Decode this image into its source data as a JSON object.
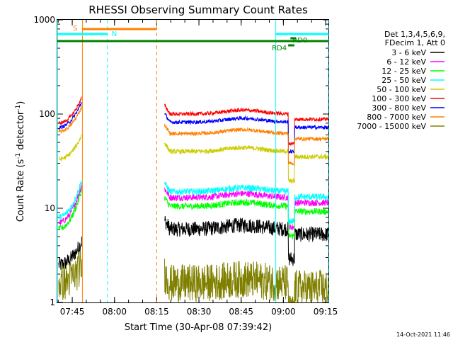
{
  "chart_data": {
    "type": "line",
    "title": "RHESSI Observing Summary Count Rates",
    "xlabel": "Start Time (30-Apr-08 07:39:42)",
    "ylabel_main": "Count Rate (s",
    "ylabel_sup1": "-1",
    "ylabel_mid": " detector",
    "ylabel_sup2": "-1",
    "ylabel_end": ")",
    "yscale": "log",
    "ylim": [
      1,
      1000
    ],
    "xlim_minutes": [
      0,
      96.3
    ],
    "x_ticks": [
      {
        "label": "07:45",
        "minute": 5.3
      },
      {
        "label": "08:00",
        "minute": 20.3
      },
      {
        "label": "08:15",
        "minute": 35.3
      },
      {
        "label": "08:30",
        "minute": 50.3
      },
      {
        "label": "08:45",
        "minute": 65.3
      },
      {
        "label": "09:00",
        "minute": 80.3
      },
      {
        "label": "09:15",
        "minute": 95.3
      }
    ],
    "y_ticks": [
      {
        "label": "1",
        "value": 1
      },
      {
        "label": "10",
        "value": 10
      },
      {
        "label": "100",
        "value": 100
      },
      {
        "label": "1000",
        "value": 1000
      }
    ],
    "legend_header": [
      "Det 1,3,4,5,6,9,",
      "FDecim 1, Att 0"
    ],
    "data_gaps_minutes": [
      [
        8.9,
        38.1
      ],
      [
        77.6,
        77.8
      ]
    ],
    "series": [
      {
        "name": "3 - 6 keV",
        "color": "#000000",
        "pre_start": 2.5,
        "pre_end": 4.5,
        "base": 6.0,
        "noise": 0.08
      },
      {
        "name": "6 - 12 keV",
        "color": "#ff00ff",
        "pre_start": 7.0,
        "pre_end": 18.0,
        "base": 13.0,
        "noise": 0.035
      },
      {
        "name": "12 - 25 keV",
        "color": "#00ff00",
        "pre_start": 6.0,
        "pre_end": 16.0,
        "base": 10.5,
        "noise": 0.035
      },
      {
        "name": "25 - 50 keV",
        "color": "#00ffff",
        "pre_start": 8.0,
        "pre_end": 20.0,
        "base": 15.0,
        "noise": 0.035
      },
      {
        "name": "50 - 100 keV",
        "color": "#cccc00",
        "pre_start": 33.0,
        "pre_end": 60.0,
        "base": 40.0,
        "noise": 0.025
      },
      {
        "name": "100 - 300 keV",
        "color": "#ff0000",
        "pre_start": 80.0,
        "pre_end": 150.0,
        "base": 100.0,
        "noise": 0.02
      },
      {
        "name": "300 - 800 keV",
        "color": "#0000ff",
        "pre_start": 72.0,
        "pre_end": 135.0,
        "base": 82.0,
        "noise": 0.02
      },
      {
        "name": "800 - 7000 keV",
        "color": "#ff8000",
        "pre_start": 65.0,
        "pre_end": 120.0,
        "base": 62.0,
        "noise": 0.02
      },
      {
        "name": "7000 - 15000 keV",
        "color": "#808000",
        "pre_start": 1.6,
        "pre_end": 2.5,
        "base": 1.6,
        "noise": 0.2
      }
    ],
    "flag_bars": [
      {
        "label": "S",
        "color": "#ff8000",
        "start": 8.9,
        "end": 35.3,
        "level": 1
      },
      {
        "label": "N",
        "color": "#00ffff",
        "start": 0.0,
        "end": 17.8,
        "level": 2
      },
      {
        "label": "",
        "color": "#00ffff",
        "start": 77.6,
        "end": 96.3,
        "level": 2
      },
      {
        "label": "RD0",
        "color": "#008000",
        "start": 82.8,
        "end": 84.8,
        "level": 3
      },
      {
        "label": "",
        "color": "#008000",
        "start": 0.0,
        "end": 96.3,
        "level": 4
      },
      {
        "label": "RD4",
        "color": "#008000",
        "start": 82.0,
        "end": 84.2,
        "level": 5
      }
    ],
    "vertical_markers": [
      {
        "minute": 0.0,
        "color": "#00ffff",
        "style": "solid"
      },
      {
        "minute": 8.9,
        "color": "#ff8000",
        "style": "solid"
      },
      {
        "minute": 17.8,
        "color": "#00ffff",
        "style": "dashed"
      },
      {
        "minute": 35.3,
        "color": "#ff8000",
        "style": "dashed"
      },
      {
        "minute": 77.6,
        "color": "#00ffff",
        "style": "solid"
      },
      {
        "minute": 96.3,
        "color": "#00ffff",
        "style": "dashed"
      }
    ]
  },
  "footer": {
    "timestamp": "14-Oct-2021 11:46"
  }
}
